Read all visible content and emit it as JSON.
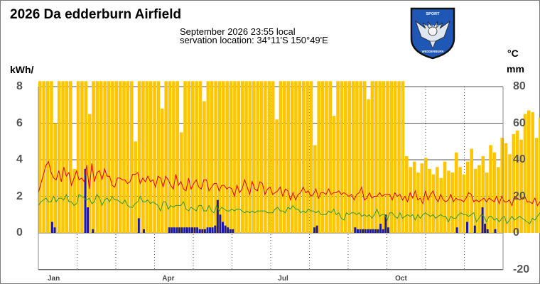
{
  "header": {
    "title": "2026 Da         edderburn Airfield",
    "line1": "September 2026  23:55 local",
    "line2": "servation location: 34°11'S 150°49'E"
  },
  "axes": {
    "left_unit": "kWh/",
    "right_unit_top": "°C",
    "right_unit_bottom": "mm"
  },
  "logo": {
    "text_top": "SPORT",
    "text_mid1": "AIRCRAFT",
    "text_mid2": "CLUB",
    "text_bottom": "WEDDERBURN",
    "colors": {
      "fill": "#1f57b5",
      "border": "#111111",
      "wing": "#dfe6f0"
    }
  },
  "chart_data": {
    "type": "bar",
    "x_axis": {
      "kind": "months",
      "ticks": [
        "Jan",
        "Apr",
        "Jul",
        "Oct"
      ],
      "days_in_year": 365
    },
    "left_axis": {
      "label": "kWh/",
      "range": [
        0,
        8
      ],
      "ticks": [
        0,
        2,
        4,
        6,
        8
      ]
    },
    "right_axis": {
      "label": "°C / mm",
      "range": [
        -20,
        80
      ],
      "ticks": [
        -20,
        0,
        20,
        40,
        60,
        80
      ]
    },
    "grid": true,
    "series": [
      {
        "kind": "bars",
        "axis": "left",
        "color": "#ffc600",
        "start_day": 1,
        "step_days": 3,
        "values": [
          8.3,
          8.3,
          8.3,
          8.3,
          6.0,
          8.3,
          8.3,
          8.3,
          8.3,
          3.5,
          8.3,
          8.3,
          8.3,
          6.5,
          8.3,
          8.3,
          8.3,
          8.3,
          8.3,
          8.3,
          8.3,
          8.3,
          8.3,
          8.3,
          8.3,
          5.0,
          8.3,
          8.3,
          8.3,
          8.3,
          8.3,
          8.3,
          6.8,
          8.3,
          8.3,
          8.3,
          8.3,
          5.5,
          8.3,
          8.3,
          8.3,
          8.3,
          8.3,
          7.2,
          8.3,
          8.3,
          8.3,
          8.3,
          8.3,
          8.3,
          8.3,
          8.3,
          8.3,
          8.3,
          8.3,
          8.3,
          8.3,
          8.3,
          8.3,
          8.3,
          8.3,
          8.3,
          6.2,
          8.3,
          8.3,
          8.3,
          8.3,
          8.3,
          8.3,
          8.3,
          8.3,
          8.3,
          4.8,
          8.3,
          8.3,
          8.3,
          8.3,
          6.4,
          8.3,
          8.3,
          8.3,
          8.3,
          8.3,
          8.3,
          8.3,
          8.3,
          7.3,
          8.3,
          8.3,
          8.3,
          8.3,
          8.3,
          8.3,
          8.3,
          8.3,
          8.3,
          4.2,
          3.6,
          3.9,
          3.3,
          3.8,
          4.1,
          3.5,
          3.2,
          3.6,
          3.0,
          3.9,
          3.4,
          3.3,
          4.4,
          3.6,
          3.2,
          3.9,
          4.6,
          3.5,
          3.7,
          4.2,
          3.3,
          4.8,
          4.4,
          3.6,
          5.2,
          4.9,
          4.3,
          5.4,
          5.6,
          5.1,
          6.5,
          6.7,
          6.6,
          5.2,
          6.3,
          6.6,
          6.5,
          5.1,
          5.0,
          4.6,
          4.9,
          5.8,
          6.2,
          6.6,
          6.7,
          5.2,
          6.0,
          5.3
        ]
      },
      {
        "kind": "bars",
        "axis": "right",
        "unit": "mm",
        "color": "#1a1aa6",
        "start_day": 1,
        "step_days": 2,
        "values": [
          0,
          0,
          0,
          0,
          0,
          6,
          3,
          0,
          0,
          0,
          0,
          0,
          0,
          0,
          0,
          0,
          0,
          0,
          35,
          14,
          0,
          2,
          0,
          0,
          0,
          0,
          0,
          0,
          0,
          0,
          0,
          0,
          0,
          0,
          0,
          0,
          0,
          0,
          0,
          8,
          0,
          2,
          0,
          0,
          0,
          0,
          0,
          0,
          0,
          0,
          0,
          3,
          3,
          3,
          3,
          3,
          3,
          3,
          3,
          3,
          3,
          3,
          3,
          2,
          2,
          2,
          3,
          3,
          3,
          4,
          18,
          10,
          6,
          4,
          3,
          2,
          2,
          0,
          0,
          0,
          0,
          0,
          0,
          0,
          0,
          0,
          0,
          0,
          0,
          0,
          0,
          0,
          0,
          0,
          0,
          0,
          0,
          0,
          0,
          0,
          0,
          0,
          0,
          0,
          0,
          0,
          0,
          0,
          3,
          4,
          0,
          0,
          0,
          0,
          0,
          0,
          0,
          0,
          0,
          0,
          0,
          0,
          0,
          0,
          3,
          2,
          2,
          2,
          2,
          2,
          2,
          2,
          2,
          2,
          5,
          2,
          10,
          3,
          0,
          0,
          0,
          0,
          0,
          0,
          0,
          0,
          0,
          0,
          0,
          0,
          0,
          0,
          0,
          0,
          0,
          0,
          0,
          0,
          0,
          0,
          0,
          0,
          0,
          0,
          3,
          0,
          0,
          0,
          6,
          0,
          0,
          4,
          0,
          0,
          14,
          5,
          2,
          0,
          0,
          2,
          0,
          0,
          0,
          0,
          0,
          0,
          0,
          0,
          0,
          0,
          0,
          0,
          0,
          0,
          0,
          0,
          0,
          0,
          0,
          0,
          0,
          0,
          0,
          0,
          0,
          0,
          3,
          0,
          0,
          0,
          0,
          0,
          6,
          0,
          0,
          0,
          0,
          0,
          4,
          0,
          0,
          3,
          0,
          0,
          0,
          0,
          0,
          10,
          0,
          0,
          0,
          12,
          0,
          0,
          0,
          0,
          0,
          0,
          0,
          0,
          0,
          0,
          0,
          0,
          0,
          0,
          0,
          0
        ]
      },
      {
        "kind": "line",
        "axis": "right",
        "unit": "°C",
        "color": "#e00000",
        "start_day": 1,
        "step_days": 2,
        "values": [
          22,
          27,
          32,
          37,
          39,
          33,
          30,
          29,
          34,
          28,
          36,
          31,
          33,
          26,
          30,
          34,
          29,
          30,
          28,
          37,
          24,
          38,
          28,
          33,
          34,
          29,
          35,
          31,
          31,
          26,
          25,
          30,
          30,
          29,
          29,
          27,
          28,
          32,
          32,
          33,
          27,
          30,
          28,
          31,
          28,
          29,
          25,
          31,
          30,
          25,
          31,
          29,
          26,
          24,
          32,
          26,
          28,
          24,
          23,
          30,
          24,
          27,
          29,
          25,
          24,
          29,
          29,
          23,
          25,
          27,
          27,
          23,
          26,
          26,
          24,
          25,
          24,
          20,
          26,
          22,
          24,
          29,
          25,
          21,
          28,
          24,
          23,
          28,
          27,
          21,
          24,
          25,
          21,
          22,
          23,
          25,
          20,
          24,
          23,
          18,
          22,
          18,
          21,
          22,
          25,
          22,
          23,
          20,
          21,
          24,
          19,
          22,
          22,
          21,
          24,
          21,
          22,
          22,
          23,
          21,
          22,
          21,
          20,
          21,
          18,
          21,
          22,
          25,
          18,
          19,
          22,
          19,
          20,
          20,
          22,
          20,
          21,
          21,
          21,
          18,
          22,
          20,
          21,
          18,
          20,
          17,
          22,
          19,
          23,
          18,
          19,
          16,
          23,
          18,
          21,
          23,
          19,
          17,
          21,
          18,
          17,
          18,
          21,
          17,
          19,
          18,
          18,
          17,
          19,
          22,
          21,
          17,
          18,
          17,
          18,
          19,
          17,
          19,
          18,
          17,
          20,
          16,
          20,
          17,
          17,
          18,
          15,
          20,
          19,
          18,
          19,
          20,
          17,
          17,
          16,
          19,
          15,
          17,
          19,
          16,
          18,
          18,
          17,
          16,
          17,
          18,
          17,
          16,
          15,
          19,
          17,
          16,
          19,
          16,
          15,
          18,
          16,
          16,
          20,
          20,
          19,
          17,
          19,
          24,
          21,
          26,
          24,
          22,
          20
        ]
      },
      {
        "kind": "line",
        "axis": "right",
        "unit": "°C",
        "color": "#2c9a2c",
        "start_day": 1,
        "step_days": 2,
        "values": [
          15,
          17,
          18,
          19,
          17,
          17,
          20,
          17,
          19,
          19,
          18,
          21,
          17,
          17,
          15,
          16,
          21,
          20,
          19,
          18,
          19,
          16,
          17,
          21,
          19,
          15,
          18,
          19,
          17,
          20,
          18,
          18,
          17,
          16,
          18,
          15,
          14,
          14,
          16,
          17,
          20,
          17,
          17,
          18,
          16,
          17,
          16,
          15,
          12,
          17,
          17,
          13,
          15,
          14,
          15,
          15,
          15,
          17,
          13,
          12,
          14,
          13,
          12,
          15,
          15,
          12,
          12,
          15,
          12,
          11,
          15,
          12,
          14,
          13,
          12,
          12,
          13,
          12,
          13,
          13,
          12,
          11,
          12,
          11,
          12,
          11,
          12,
          12,
          12,
          12,
          11,
          11,
          11,
          13,
          14,
          12,
          12,
          11,
          14,
          13,
          15,
          13,
          13,
          11,
          12,
          11,
          13,
          12,
          12,
          11,
          12,
          10,
          10,
          10,
          12,
          11,
          13,
          10,
          11,
          8,
          7,
          11,
          10,
          11,
          11,
          10,
          11,
          9,
          10,
          9,
          10,
          8,
          10,
          13,
          9,
          10,
          10,
          7,
          11,
          11,
          9,
          8,
          11,
          8,
          9,
          10,
          9,
          10,
          7,
          10,
          8,
          10,
          11,
          10,
          9,
          10,
          8,
          9,
          10,
          9,
          9,
          6,
          9,
          8,
          8,
          10,
          11,
          10,
          10,
          9,
          10,
          11,
          6,
          8,
          10,
          9,
          6,
          9,
          9,
          7,
          8,
          6,
          8,
          9,
          5,
          7,
          9,
          7,
          8,
          9,
          8,
          7,
          6,
          5,
          8,
          7,
          9,
          11,
          9,
          8,
          8,
          9,
          6,
          6,
          11,
          7,
          8,
          9,
          10,
          10,
          8,
          9,
          10,
          11,
          10,
          9,
          8,
          12,
          11,
          10,
          10,
          12,
          11,
          13,
          12,
          12,
          15,
          13,
          14
        ]
      }
    ]
  }
}
